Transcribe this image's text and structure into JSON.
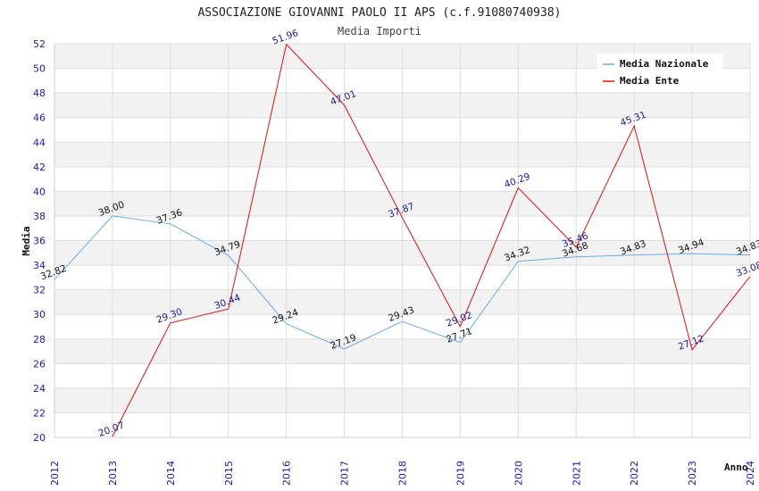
{
  "chart_data": {
    "type": "line",
    "title": "ASSOCIAZIONE GIOVANNI PAOLO II APS (c.f.91080740938)",
    "subtitle": "Media Importi",
    "xlabel": "Anno",
    "ylabel": "Media",
    "categories": [
      "2012",
      "2013",
      "2014",
      "2015",
      "2016",
      "2017",
      "2018",
      "2019",
      "2020",
      "2021",
      "2022",
      "2023",
      "2024"
    ],
    "ylim": [
      20,
      52
    ],
    "yticks": [
      "20",
      "22",
      "24",
      "26",
      "28",
      "30",
      "32",
      "34",
      "36",
      "38",
      "40",
      "42",
      "44",
      "46",
      "48",
      "50",
      "52"
    ],
    "grid": true,
    "legend_position": "top-right",
    "series": [
      {
        "name": "Media Nazionale",
        "color": "#6aabe6",
        "label_color": "#111111",
        "values": [
          32.82,
          38.0,
          37.36,
          34.79,
          29.24,
          27.19,
          29.43,
          27.71,
          34.32,
          34.68,
          34.83,
          34.94,
          34.83
        ],
        "labels": [
          "32.82",
          "38.00",
          "37.36",
          "34.79",
          "29.24",
          "27.19",
          "29.43",
          "27.71",
          "34.32",
          "34.68",
          "34.83",
          "34.94",
          "34.83"
        ]
      },
      {
        "name": "Media Ente",
        "color": "#e01010",
        "label_color": "#1a1a90",
        "values": [
          null,
          20.07,
          29.3,
          30.44,
          51.96,
          47.01,
          37.87,
          29.02,
          40.29,
          35.46,
          45.31,
          27.12,
          33.08
        ],
        "labels": [
          "",
          "20.07",
          "29.30",
          "30.44",
          "51.96",
          "47.01",
          "37.87",
          "29.02",
          "40.29",
          "35.46",
          "45.31",
          "27.12",
          "33.08"
        ]
      }
    ]
  }
}
